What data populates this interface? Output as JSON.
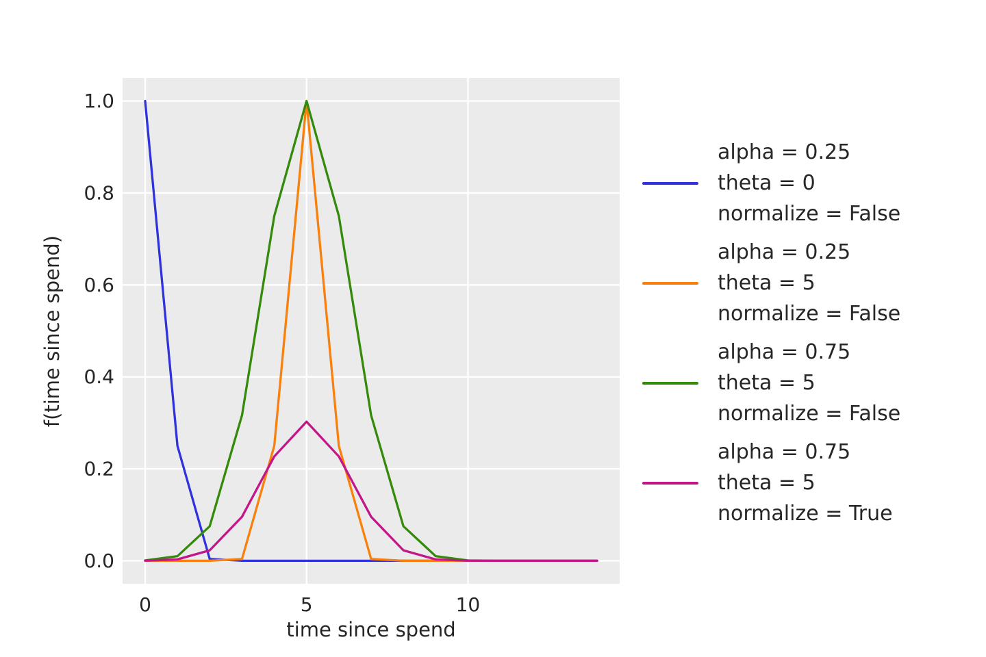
{
  "figure": {
    "background": "#ffffff",
    "plot_background": "#ebebeb",
    "grid_color": "#ffffff",
    "text_color": "#262626"
  },
  "chart_data": {
    "type": "line",
    "title": "",
    "xlabel": "time since spend",
    "ylabel": "f(time since spend)",
    "grid": true,
    "legend_position": "outside right, vertically centered",
    "xlim": [
      -0.7,
      14.7
    ],
    "ylim": [
      -0.05,
      1.05
    ],
    "xticks": [
      0,
      5,
      10
    ],
    "xtick_labels": [
      "0",
      "5",
      "10"
    ],
    "yticks": [
      0.0,
      0.2,
      0.4,
      0.6,
      0.8,
      1.0
    ],
    "ytick_labels": [
      "0.0",
      "0.2",
      "0.4",
      "0.6",
      "0.8",
      "1.0"
    ],
    "x": [
      0,
      1,
      2,
      3,
      4,
      5,
      6,
      7,
      8,
      9,
      10,
      11,
      12,
      13,
      14
    ],
    "series": [
      {
        "name": "alpha = 0.25, theta = 0, normalize = False",
        "color": "#3032db",
        "values": [
          1.0,
          0.25,
          0.003906,
          4e-06,
          0,
          0,
          0,
          0,
          0,
          0,
          0,
          0,
          0,
          0,
          0
        ]
      },
      {
        "name": "alpha = 0.25, theta = 5, normalize = False",
        "color": "#f8810d",
        "values": [
          0,
          0,
          4e-06,
          0.003906,
          0.25,
          1.0,
          0.25,
          0.003906,
          4e-06,
          0,
          0,
          0,
          0,
          0,
          0
        ]
      },
      {
        "name": "alpha = 0.75, theta = 5, normalize = False",
        "color": "#348a0b",
        "values": [
          0.000753,
          0.010023,
          0.075085,
          0.316406,
          0.75,
          1.0,
          0.75,
          0.316406,
          0.075085,
          0.010023,
          0.000753,
          3.2e-05,
          1e-06,
          0,
          0
        ]
      },
      {
        "name": "alpha = 0.75, theta = 5, normalize = True",
        "color": "#c21689",
        "values": [
          0.000228,
          0.003033,
          0.022721,
          0.095746,
          0.226953,
          0.302604,
          0.226953,
          0.095746,
          0.022721,
          0.003033,
          0.000228,
          1e-05,
          0,
          0,
          0
        ]
      }
    ]
  },
  "legend": {
    "entries": [
      {
        "color": "#3032db",
        "lines": [
          "alpha = 0.25",
          "theta = 0",
          "normalize = False"
        ]
      },
      {
        "color": "#f8810d",
        "lines": [
          "alpha = 0.25",
          "theta = 5",
          "normalize = False"
        ]
      },
      {
        "color": "#348a0b",
        "lines": [
          "alpha = 0.75",
          "theta = 5",
          "normalize = False"
        ]
      },
      {
        "color": "#c21689",
        "lines": [
          "alpha = 0.75",
          "theta = 5",
          "normalize = True"
        ]
      }
    ]
  }
}
